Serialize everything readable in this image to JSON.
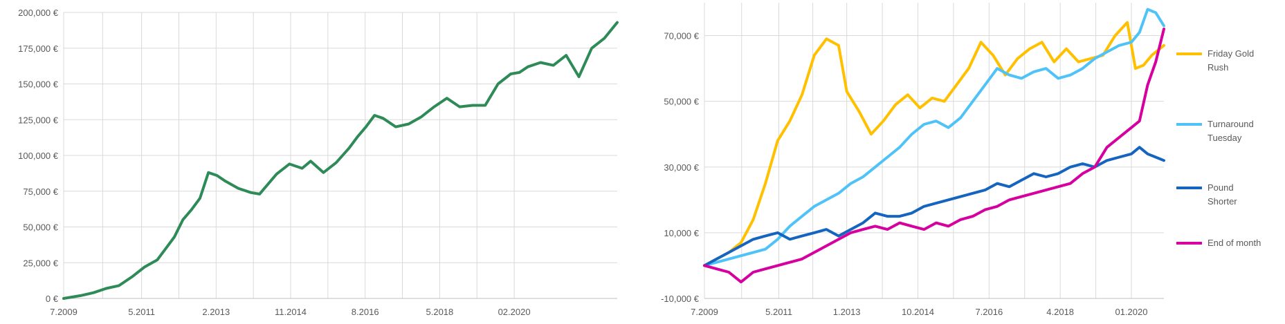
{
  "chart_data": [
    {
      "type": "line",
      "title": "",
      "xlabel": "",
      "ylabel": "",
      "ylim": [
        0,
        200000
      ],
      "grid": true,
      "legend": "none",
      "y_ticks": [
        0,
        25000,
        50000,
        75000,
        100000,
        125000,
        150000,
        175000,
        200000
      ],
      "y_tick_labels": [
        "0 €",
        "25,000 €",
        "50,000 €",
        "75,000 €",
        "100,000 €",
        "125,000 €",
        "150,000 €",
        "175,000 €",
        "200,000 €"
      ],
      "x_tick_labels": [
        "7.2009",
        "5.2011",
        "2.2013",
        "11.2014",
        "8.2016",
        "5.2018",
        "02.2020"
      ],
      "x_tick_dates": [
        2009.5,
        2011.33,
        2013.08,
        2014.83,
        2016.58,
        2018.33,
        2020.08
      ],
      "xlim": [
        2009.5,
        2022.5
      ],
      "series": [
        {
          "color": "#2e8b57",
          "x": [
            2009.5,
            2009.9,
            2010.2,
            2010.5,
            2010.8,
            2011.1,
            2011.4,
            2011.7,
            2011.9,
            2012.1,
            2012.3,
            2012.5,
            2012.7,
            2012.9,
            2013.1,
            2013.3,
            2013.6,
            2013.9,
            2014.1,
            2014.3,
            2014.5,
            2014.8,
            2015.1,
            2015.3,
            2015.6,
            2015.9,
            2016.2,
            2016.4,
            2016.6,
            2016.8,
            2017.0,
            2017.3,
            2017.6,
            2017.9,
            2018.2,
            2018.5,
            2018.8,
            2019.1,
            2019.4,
            2019.7,
            2020.0,
            2020.2,
            2020.4,
            2020.7,
            2021.0,
            2021.3,
            2021.6,
            2021.9,
            2022.2,
            2022.5
          ],
          "y": [
            0,
            2000,
            4000,
            7000,
            9000,
            15000,
            22000,
            27000,
            35000,
            43000,
            55000,
            62000,
            70000,
            88000,
            86000,
            82000,
            77000,
            74000,
            73000,
            80000,
            87000,
            94000,
            91000,
            96000,
            88000,
            95000,
            105000,
            113000,
            120000,
            128000,
            126000,
            120000,
            122000,
            127000,
            134000,
            140000,
            134000,
            135000,
            135000,
            150000,
            157000,
            158000,
            162000,
            165000,
            163000,
            170000,
            155000,
            175000,
            182000,
            193000
          ]
        }
      ]
    },
    {
      "type": "line",
      "title": "",
      "xlabel": "",
      "ylabel": "",
      "ylim": [
        -10000,
        80000
      ],
      "grid": true,
      "legend": "right",
      "y_ticks": [
        -10000,
        10000,
        30000,
        50000,
        70000
      ],
      "y_tick_labels": [
        "-10,000 €",
        "10,000 €",
        "30,000 €",
        "50,000 €",
        "70,000 €"
      ],
      "x_tick_labels": [
        "7.2009",
        "5.2011",
        "1.2013",
        "10.2014",
        "7.2016",
        "4.2018",
        "01.2020"
      ],
      "x_tick_dates": [
        2009.5,
        2011.33,
        2013.0,
        2014.75,
        2016.5,
        2018.25,
        2020.0
      ],
      "xlim": [
        2009.5,
        2020.8
      ],
      "series": [
        {
          "name": "Friday Gold Rush",
          "color": "#ffc000",
          "x": [
            2009.5,
            2009.8,
            2010.1,
            2010.4,
            2010.7,
            2011.0,
            2011.3,
            2011.6,
            2011.9,
            2012.2,
            2012.5,
            2012.8,
            2013.0,
            2013.3,
            2013.6,
            2013.9,
            2014.2,
            2014.5,
            2014.8,
            2015.1,
            2015.4,
            2015.7,
            2016.0,
            2016.3,
            2016.6,
            2016.9,
            2017.2,
            2017.5,
            2017.8,
            2018.1,
            2018.4,
            2018.7,
            2019.0,
            2019.3,
            2019.6,
            2019.9,
            2020.1,
            2020.3,
            2020.5,
            2020.8
          ],
          "y": [
            0,
            2000,
            4000,
            7000,
            14000,
            25000,
            38000,
            44000,
            52000,
            64000,
            69000,
            67000,
            53000,
            47000,
            40000,
            44000,
            49000,
            52000,
            48000,
            51000,
            50000,
            55000,
            60000,
            68000,
            64000,
            58000,
            63000,
            66000,
            68000,
            62000,
            66000,
            62000,
            63000,
            64000,
            70000,
            74000,
            60000,
            61000,
            64000,
            67000
          ]
        },
        {
          "name": "Turnaround Tuesday",
          "color": "#4fc3f7",
          "x": [
            2009.5,
            2009.8,
            2010.1,
            2010.4,
            2010.7,
            2011.0,
            2011.3,
            2011.6,
            2011.9,
            2012.2,
            2012.5,
            2012.8,
            2013.1,
            2013.4,
            2013.7,
            2014.0,
            2014.3,
            2014.6,
            2014.9,
            2015.2,
            2015.5,
            2015.8,
            2016.1,
            2016.4,
            2016.7,
            2017.0,
            2017.3,
            2017.6,
            2017.9,
            2018.2,
            2018.5,
            2018.8,
            2019.1,
            2019.4,
            2019.7,
            2020.0,
            2020.2,
            2020.4,
            2020.6,
            2020.8
          ],
          "y": [
            0,
            1000,
            2000,
            3000,
            4000,
            5000,
            8000,
            12000,
            15000,
            18000,
            20000,
            22000,
            25000,
            27000,
            30000,
            33000,
            36000,
            40000,
            43000,
            44000,
            42000,
            45000,
            50000,
            55000,
            60000,
            58000,
            57000,
            59000,
            60000,
            57000,
            58000,
            60000,
            63000,
            65000,
            67000,
            68000,
            71000,
            78000,
            77000,
            73000
          ]
        },
        {
          "name": "Pound Shorter",
          "color": "#1565c0",
          "x": [
            2009.5,
            2009.8,
            2010.1,
            2010.4,
            2010.7,
            2011.0,
            2011.3,
            2011.6,
            2011.9,
            2012.2,
            2012.5,
            2012.8,
            2013.1,
            2013.4,
            2013.7,
            2014.0,
            2014.3,
            2014.6,
            2014.9,
            2015.2,
            2015.5,
            2015.8,
            2016.1,
            2016.4,
            2016.7,
            2017.0,
            2017.3,
            2017.6,
            2017.9,
            2018.2,
            2018.5,
            2018.8,
            2019.1,
            2019.4,
            2019.7,
            2020.0,
            2020.2,
            2020.4,
            2020.6,
            2020.8
          ],
          "y": [
            0,
            2000,
            4000,
            6000,
            8000,
            9000,
            10000,
            8000,
            9000,
            10000,
            11000,
            9000,
            11000,
            13000,
            16000,
            15000,
            15000,
            16000,
            18000,
            19000,
            20000,
            21000,
            22000,
            23000,
            25000,
            24000,
            26000,
            28000,
            27000,
            28000,
            30000,
            31000,
            30000,
            32000,
            33000,
            34000,
            36000,
            34000,
            33000,
            32000
          ]
        },
        {
          "name": "End of month",
          "color": "#d6009f",
          "x": [
            2009.5,
            2009.8,
            2010.1,
            2010.4,
            2010.7,
            2011.0,
            2011.3,
            2011.6,
            2011.9,
            2012.2,
            2012.5,
            2012.8,
            2013.1,
            2013.4,
            2013.7,
            2014.0,
            2014.3,
            2014.6,
            2014.9,
            2015.2,
            2015.5,
            2015.8,
            2016.1,
            2016.4,
            2016.7,
            2017.0,
            2017.3,
            2017.6,
            2017.9,
            2018.2,
            2018.5,
            2018.8,
            2019.1,
            2019.4,
            2019.6,
            2019.8,
            2020.0,
            2020.2,
            2020.4,
            2020.6,
            2020.8
          ],
          "y": [
            0,
            -1000,
            -2000,
            -5000,
            -2000,
            -1000,
            0,
            1000,
            2000,
            4000,
            6000,
            8000,
            10000,
            11000,
            12000,
            11000,
            13000,
            12000,
            11000,
            13000,
            12000,
            14000,
            15000,
            17000,
            18000,
            20000,
            21000,
            22000,
            23000,
            24000,
            25000,
            28000,
            30000,
            36000,
            38000,
            40000,
            42000,
            44000,
            55000,
            62000,
            72000
          ]
        }
      ]
    }
  ]
}
